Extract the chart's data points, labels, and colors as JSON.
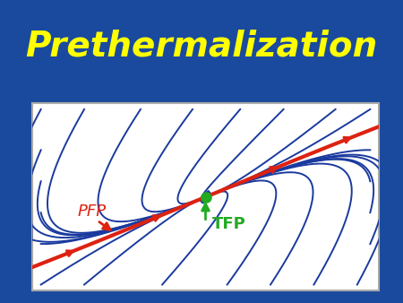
{
  "title": "Prethermalization",
  "title_color": "#FFFF00",
  "background_color": "#1a4a9e",
  "panel_background": "#ffffff",
  "panel_border_color": "#aaaaaa",
  "stream_color": "#1a3a9e",
  "red_line_color": "#dd2211",
  "tfp_color": "#22aa22",
  "pfp_color": "#dd2211",
  "tfp_label": "TFP",
  "pfp_label": "PFP",
  "title_fontsize": 28,
  "label_fontsize": 13
}
